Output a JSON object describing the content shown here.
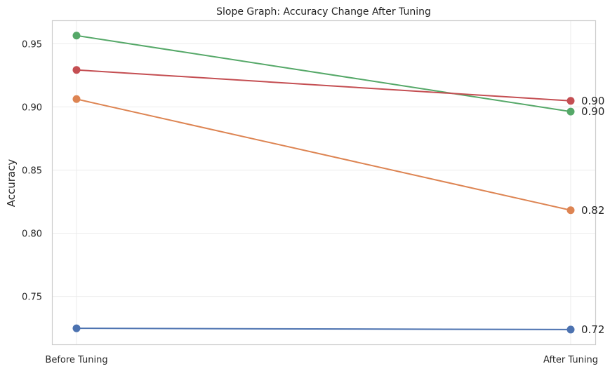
{
  "chart_data": {
    "type": "line",
    "title": "Slope Graph: Accuracy Change After Tuning",
    "xlabel": "",
    "ylabel": "Accuracy",
    "categories": [
      "Before Tuning",
      "After Tuning"
    ],
    "ylim": [
      0.712,
      0.968
    ],
    "yticks": [
      0.75,
      0.8,
      0.85,
      0.9,
      0.95
    ],
    "ytick_labels": [
      "0.75",
      "0.80",
      "0.85",
      "0.90",
      "0.95"
    ],
    "grid": true,
    "legend": "none",
    "series": [
      {
        "values": [
          0.9565,
          0.8963
        ],
        "color": "#55a868",
        "end_label": "0.90"
      },
      {
        "values": [
          0.9293,
          0.9048
        ],
        "color": "#c44e52",
        "end_label": "0.90"
      },
      {
        "values": [
          0.9062,
          0.8182
        ],
        "color": "#dd8452",
        "end_label": "0.82"
      },
      {
        "values": [
          0.7247,
          0.7237
        ],
        "color": "#4c72b0",
        "end_label": "0.72"
      }
    ]
  }
}
